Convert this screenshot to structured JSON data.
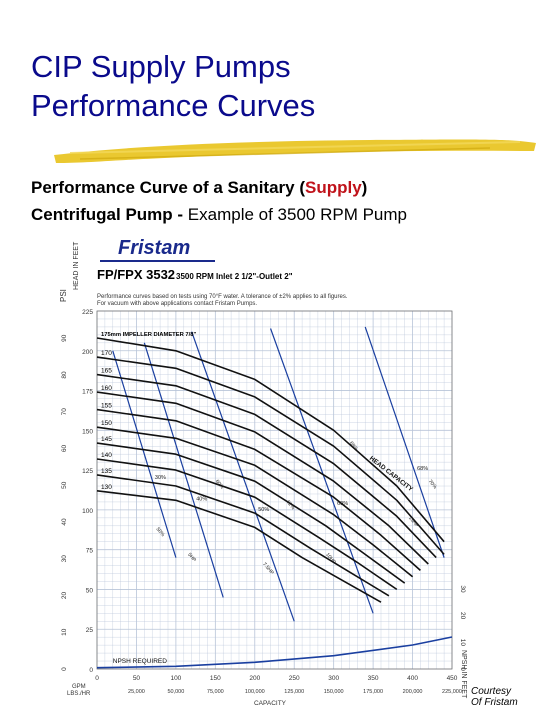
{
  "slide": {
    "title": "CIP Supply Pumps",
    "subtitle": "Performance Curves",
    "desc_line1_a": "Performance Curve of a Sanitary (",
    "desc_line1_hl": "Supply",
    "desc_line1_b": ")",
    "desc_line2_bold": "Centrifugal Pump -",
    "desc_line2_rest": " Example of 3500 RPM Pump",
    "courtesy_line1": "Courtesy",
    "courtesy_line2": "Of Fristam",
    "colors": {
      "title": "#0a0a8c",
      "highlight": "#c0121a",
      "grid": "#b8c4d8",
      "npsh_line": "#1a3fa0",
      "diag": "#1a3fa0",
      "brush": "#e8c21a"
    }
  },
  "chart_data": {
    "type": "line",
    "logo": "Fristam",
    "model": "FP/FPX 3532",
    "spec": "3500 RPM Inlet 2 1/2\"-Outlet 2\"",
    "note": "Performance curves based on tests using 70°F water. A tolerance of ±2% applies to all figures. For vacuum with above applications contact Fristam Pumps.",
    "left_axis_label": "PSI",
    "feet_axis_label": "HEAD IN FEET",
    "x_label": "CAPACITY",
    "gpm_label": "GPM",
    "lbshr_label": "LBS./HR",
    "npsh_axis_label": "NPSH IN FEET",
    "npsh_required_label": "NPSH REQUIRED",
    "head_capacity_label": "HEAD CAPACITY",
    "impeller_label_prefix": "mm IMPELLER DIAMETER",
    "feet_ticks": [
      0,
      25,
      50,
      75,
      100,
      125,
      150,
      175,
      200,
      225
    ],
    "psi_ticks": [
      0,
      10,
      20,
      30,
      40,
      50,
      60,
      70,
      80,
      90
    ],
    "gpm_ticks": [
      0,
      50,
      100,
      150,
      200,
      250,
      300,
      350,
      400,
      450
    ],
    "lbshr_ticks": [
      "25,000",
      "50,000",
      "75,000",
      "100,000",
      "125,000",
      "150,000",
      "175,000",
      "200,000",
      "225,000"
    ],
    "npsh_ticks": [
      0,
      10,
      20,
      30
    ],
    "xlim": [
      0,
      450
    ],
    "ylim": [
      0,
      225
    ],
    "npsh_ylim": [
      0,
      30
    ],
    "series": [
      {
        "name": "175mm",
        "diameter": "175",
        "fraction": "7/8\"",
        "x": [
          0,
          100,
          200,
          300,
          380,
          440
        ],
        "y": [
          208,
          200,
          182,
          150,
          115,
          80
        ]
      },
      {
        "name": "170",
        "x": [
          0,
          100,
          200,
          300,
          380,
          440
        ],
        "y": [
          196,
          189,
          171,
          140,
          106,
          72
        ]
      },
      {
        "name": "165",
        "x": [
          0,
          100,
          200,
          300,
          380,
          430
        ],
        "y": [
          185,
          178,
          160,
          129,
          96,
          70
        ]
      },
      {
        "name": "160",
        "x": [
          0,
          100,
          200,
          300,
          370,
          420
        ],
        "y": [
          174,
          167,
          149,
          118,
          90,
          66
        ]
      },
      {
        "name": "155",
        "x": [
          0,
          100,
          200,
          300,
          360,
          410
        ],
        "y": [
          163,
          156,
          138,
          108,
          84,
          62
        ]
      },
      {
        "name": "150",
        "x": [
          0,
          100,
          200,
          300,
          350,
          400
        ],
        "y": [
          152,
          145,
          128,
          97,
          78,
          58
        ]
      },
      {
        "name": "145",
        "x": [
          0,
          100,
          200,
          290,
          340,
          390
        ],
        "y": [
          142,
          135,
          118,
          90,
          72,
          54
        ]
      },
      {
        "name": "140",
        "x": [
          0,
          100,
          200,
          280,
          330,
          380
        ],
        "y": [
          132,
          125,
          108,
          83,
          67,
          50
        ]
      },
      {
        "name": "135",
        "x": [
          0,
          100,
          200,
          270,
          320,
          370
        ],
        "y": [
          122,
          115,
          98,
          76,
          61,
          46
        ]
      },
      {
        "name": "130",
        "x": [
          0,
          100,
          200,
          260,
          310,
          360
        ],
        "y": [
          112,
          106,
          89,
          70,
          56,
          42
        ]
      }
    ],
    "npsh_required": {
      "x": [
        0,
        100,
        200,
        300,
        400,
        450
      ],
      "y": [
        0.5,
        1,
        2.5,
        5,
        9,
        12
      ]
    },
    "efficiency_lines": [
      {
        "label": "30%",
        "x": [
          20,
          100
        ],
        "y": [
          200,
          70
        ]
      },
      {
        "label": "40%",
        "x": [
          60,
          160
        ],
        "y": [
          205,
          45
        ]
      },
      {
        "label": "50%",
        "x": [
          120,
          250
        ],
        "y": [
          212,
          30
        ]
      },
      {
        "label": "60%",
        "x": [
          220,
          350
        ],
        "y": [
          214,
          35
        ]
      },
      {
        "label": "68%",
        "x": [
          340,
          440
        ],
        "y": [
          215,
          70
        ]
      }
    ],
    "curve_callouts": [
      "50%",
      "60%",
      "62%",
      "68%",
      "70%",
      "5HP",
      "7.5HP",
      "10HP",
      "15HP"
    ]
  }
}
